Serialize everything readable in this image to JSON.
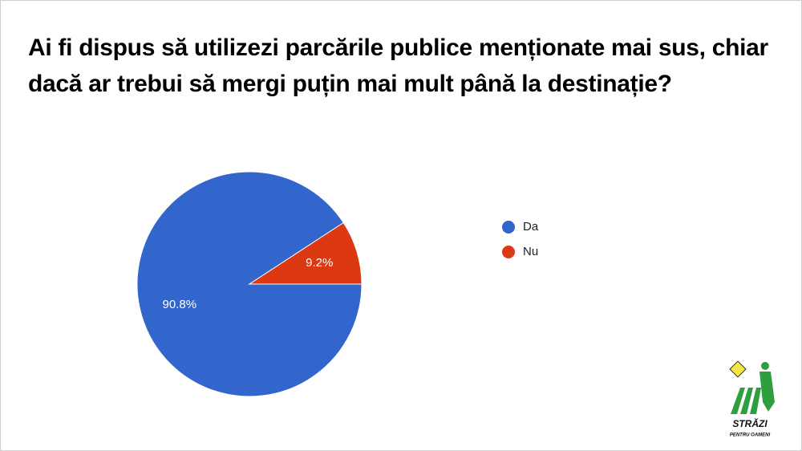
{
  "chart_data": {
    "type": "pie",
    "title": "Ai fi dispus să utilizezi parcările publice menționate mai sus, chiar dacă ar trebui să mergi puțin mai mult până la destinație?",
    "categories": [
      "Da",
      "Nu"
    ],
    "values": [
      90.8,
      9.2
    ],
    "value_labels": [
      "90.8%",
      "9.2%"
    ],
    "colors": [
      "#3366cc",
      "#dc3912"
    ],
    "legend": "right"
  },
  "logo": {
    "title": "STRĂZI",
    "subtitle": "PENTRU OAMENI"
  }
}
